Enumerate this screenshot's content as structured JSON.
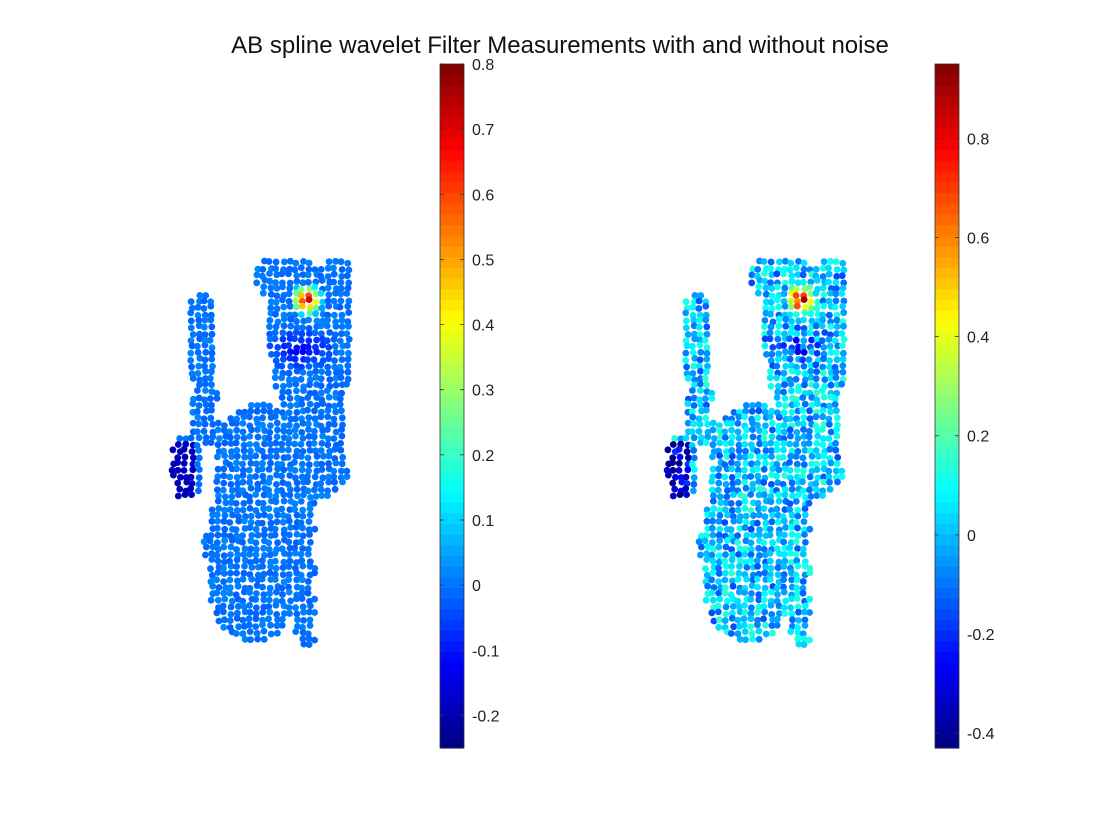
{
  "figure": {
    "title": "AB spline wavelet Filter Measurements with and without noise"
  },
  "chart_data": [
    {
      "type": "scatter",
      "name": "",
      "colormap": "jet",
      "colorbar": {
        "min": -0.25,
        "max": 0.8,
        "ticks": [
          -0.2,
          -0.1,
          0,
          0.1,
          0.2,
          0.3,
          0.4,
          0.5,
          0.6,
          0.7,
          0.8
        ],
        "tick_labels": [
          "-0.2",
          "-0.1",
          "0",
          "0.1",
          "0.2",
          "0.3",
          "0.4",
          "0.5",
          "0.6",
          "0.7",
          "0.8"
        ]
      },
      "axes_visible": false,
      "base_value": 0.0,
      "hotspot_peak": 0.8,
      "low_region_value": -0.12,
      "noisy": false
    },
    {
      "type": "scatter",
      "name": "",
      "colormap": "jet",
      "colorbar": {
        "min": -0.43,
        "max": 0.95,
        "ticks": [
          -0.4,
          -0.2,
          0,
          0.2,
          0.4,
          0.6,
          0.8
        ],
        "tick_labels": [
          "-0.4",
          "-0.2",
          "0",
          "0.2",
          "0.4",
          "0.6",
          "0.8"
        ]
      },
      "axes_visible": false,
      "base_value": 0.0,
      "hotspot_peak": 0.95,
      "low_region_value": -0.2,
      "noisy": true
    }
  ]
}
